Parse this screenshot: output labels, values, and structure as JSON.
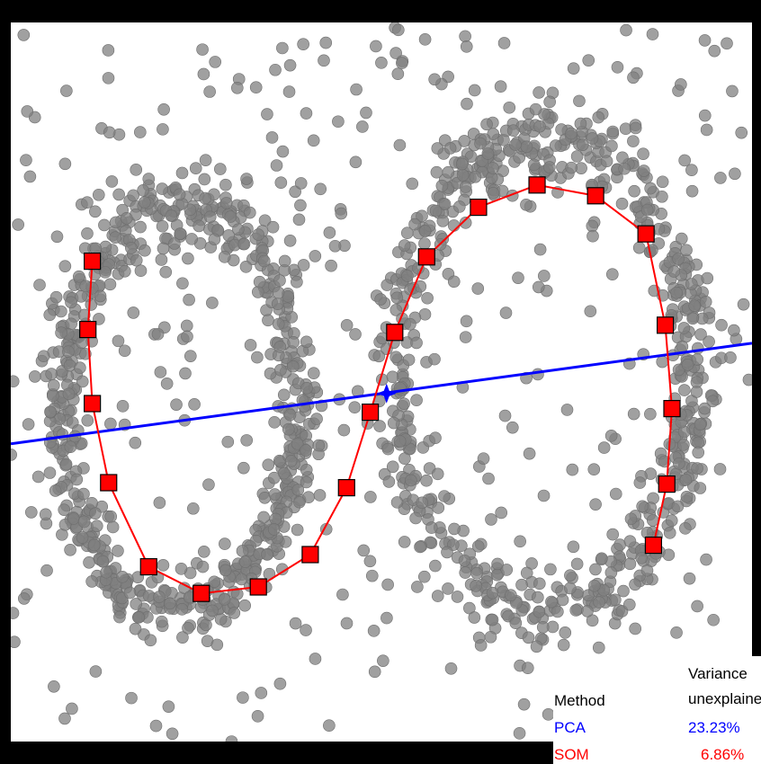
{
  "chart_data": {
    "type": "scatter",
    "title": "",
    "xlabel": "",
    "ylabel": "",
    "xlim": [
      0,
      100
    ],
    "ylim": [
      0,
      100
    ],
    "grid": false,
    "axes_visible": false,
    "point_color": "#808080",
    "som": {
      "name": "SOM",
      "color": "#ff0000",
      "nodes": [
        [
          11.0,
          66.8
        ],
        [
          10.4,
          57.3
        ],
        [
          11.0,
          47.0
        ],
        [
          13.2,
          36.0
        ],
        [
          18.6,
          24.3
        ],
        [
          25.7,
          20.6
        ],
        [
          33.4,
          21.5
        ],
        [
          40.4,
          26.0
        ],
        [
          45.3,
          35.3
        ],
        [
          48.5,
          45.8
        ],
        [
          51.8,
          56.9
        ],
        [
          56.1,
          67.4
        ],
        [
          63.1,
          74.3
        ],
        [
          71.0,
          77.4
        ],
        [
          78.9,
          75.9
        ],
        [
          85.7,
          70.6
        ],
        [
          88.3,
          57.9
        ],
        [
          89.2,
          46.3
        ],
        [
          88.5,
          35.8
        ],
        [
          86.7,
          27.3
        ]
      ]
    },
    "pca": {
      "name": "PCA",
      "color": "#0000ff",
      "line": [
        [
          0,
          41.4
        ],
        [
          100,
          55.4
        ]
      ],
      "center": [
        50.7,
        48.4
      ]
    },
    "legend": {
      "position": "bottom-right",
      "header_method": "Method",
      "header_variance_1": "Variance",
      "header_variance_2": "unexplaine",
      "rows": [
        {
          "method": "PCA",
          "value": "23.23%",
          "color": "#0000ff"
        },
        {
          "method": "SOM",
          "value": "6.86%",
          "color": "#ff0000"
        }
      ]
    }
  }
}
